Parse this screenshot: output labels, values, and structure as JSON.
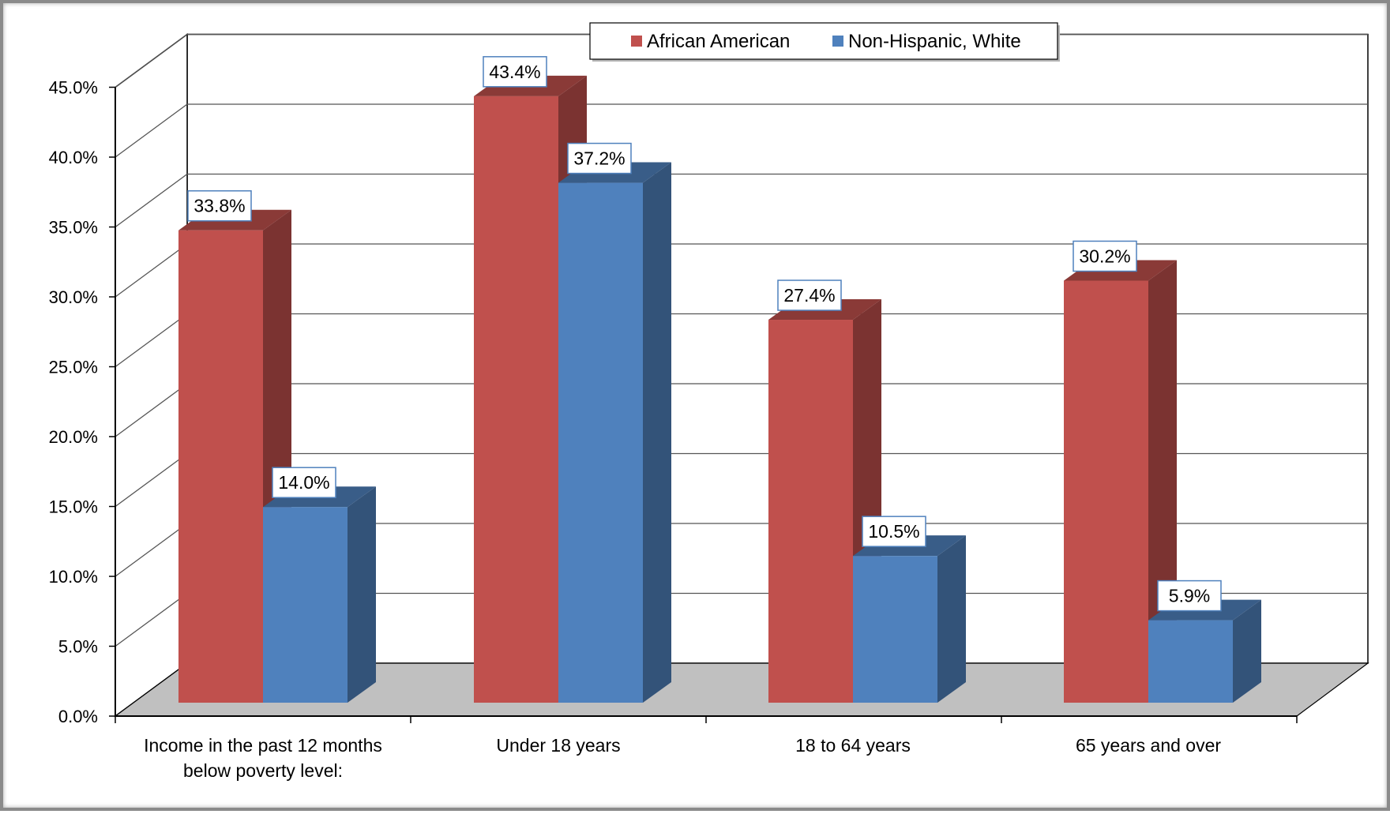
{
  "colors": {
    "african_american": "#c0504d",
    "non_hispanic_white": "#4f81bd"
  },
  "legend": [
    {
      "label": "African American",
      "color": "#c0504d"
    },
    {
      "label": "Non-Hispanic, White",
      "color": "#4f81bd"
    }
  ],
  "chart_data": {
    "type": "bar",
    "subtype": "clustered-3d",
    "categories": [
      [
        "Income in the past 12 months",
        "below poverty level:"
      ],
      [
        "Under 18 years"
      ],
      [
        "18 to 64 years"
      ],
      [
        "65 years and over"
      ]
    ],
    "series": [
      {
        "name": "African American",
        "values": [
          33.8,
          43.4,
          27.4,
          30.2
        ],
        "labels": [
          "33.8%",
          "43.4%",
          "27.4%",
          "30.2%"
        ]
      },
      {
        "name": "Non-Hispanic, White",
        "values": [
          14.0,
          37.2,
          10.5,
          5.9
        ],
        "labels": [
          "14.0%",
          "37.2%",
          "10.5%",
          "5.9%"
        ]
      }
    ],
    "y_ticks": [
      "0.0%",
      "5.0%",
      "10.0%",
      "15.0%",
      "20.0%",
      "25.0%",
      "30.0%",
      "35.0%",
      "40.0%",
      "45.0%"
    ],
    "ylim": [
      0,
      45
    ],
    "grid": true,
    "legend_position": "top-center"
  }
}
